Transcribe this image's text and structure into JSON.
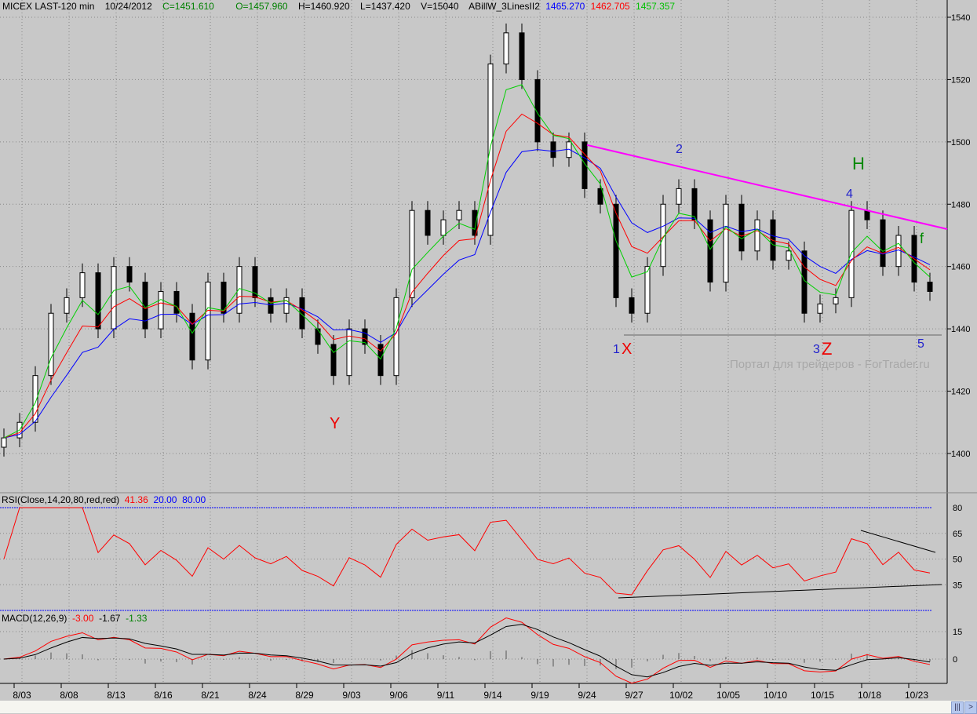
{
  "header": {
    "symbol": "MICEX LAST-120 min",
    "date": "10/24/2012",
    "close": "C=1451.610",
    "open": "O=1457.960",
    "high": "H=1460.920",
    "low": "L=1437.420",
    "volume": "V=15040",
    "indicator": "ABillW_3LinesII2",
    "ind_blue": "1465.270",
    "ind_red": "1462.705",
    "ind_green": "1457.357"
  },
  "rsi_header": {
    "label": "RSI(Close,14,20,80,red,red)",
    "value": "41.36",
    "low": "20.00",
    "high": "80.00"
  },
  "macd_header": {
    "label": "MACD(12,26,9)",
    "macd": "-3.00",
    "signal": "-1.67",
    "hist": "-1.33"
  },
  "annotations": {
    "y": "Y",
    "x1": "1",
    "x": "X",
    "w2": "2",
    "w3": "3",
    "z": "Z",
    "w4": "4",
    "h": "H",
    "w5": "5",
    "f": "f"
  },
  "watermark": "Портал для трейдеров - ForTrader.ru",
  "colors": {
    "bg": "#c8c8c8",
    "ma_blue": "#0000ff",
    "ma_red": "#ff0000",
    "ma_green": "#00d000",
    "trend": "#ff00ff",
    "rsi": "#ff0000"
  },
  "chart_data": [
    {
      "type": "candlestick",
      "title": "MICEX LAST-120 min",
      "ylim": [
        1385,
        1545
      ],
      "price_ticks": [
        1400,
        1420,
        1440,
        1460,
        1480,
        1500,
        1520,
        1540
      ],
      "date_ticks": [
        "8/03",
        "8/08",
        "8/13",
        "8/16",
        "8/21",
        "8/24",
        "8/29",
        "9/03",
        "9/06",
        "9/11",
        "9/14",
        "9/19",
        "9/24",
        "9/27",
        "10/02",
        "10/05",
        "10/10",
        "10/15",
        "10/18",
        "10/23"
      ],
      "closes": [
        1405,
        1410,
        1425,
        1445,
        1450,
        1458,
        1440,
        1460,
        1455,
        1440,
        1452,
        1445,
        1430,
        1455,
        1445,
        1460,
        1450,
        1445,
        1450,
        1440,
        1435,
        1425,
        1440,
        1435,
        1425,
        1450,
        1478,
        1470,
        1475,
        1478,
        1470,
        1525,
        1535,
        1520,
        1500,
        1495,
        1500,
        1485,
        1480,
        1450,
        1445,
        1460,
        1480,
        1485,
        1475,
        1455,
        1480,
        1465,
        1475,
        1462,
        1465,
        1445,
        1448,
        1450,
        1478,
        1475,
        1460,
        1470,
        1455,
        1452
      ],
      "trendline": [
        1499,
        1472
      ],
      "support": 1438
    },
    {
      "type": "line",
      "title": "RSI(Close,14,20,80,red,red)",
      "ylim": [
        20,
        80
      ],
      "ticks": [
        35,
        50,
        65,
        80
      ]
    },
    {
      "type": "bar",
      "title": "MACD(12,26,9)",
      "ticks": [
        0,
        15
      ]
    }
  ]
}
